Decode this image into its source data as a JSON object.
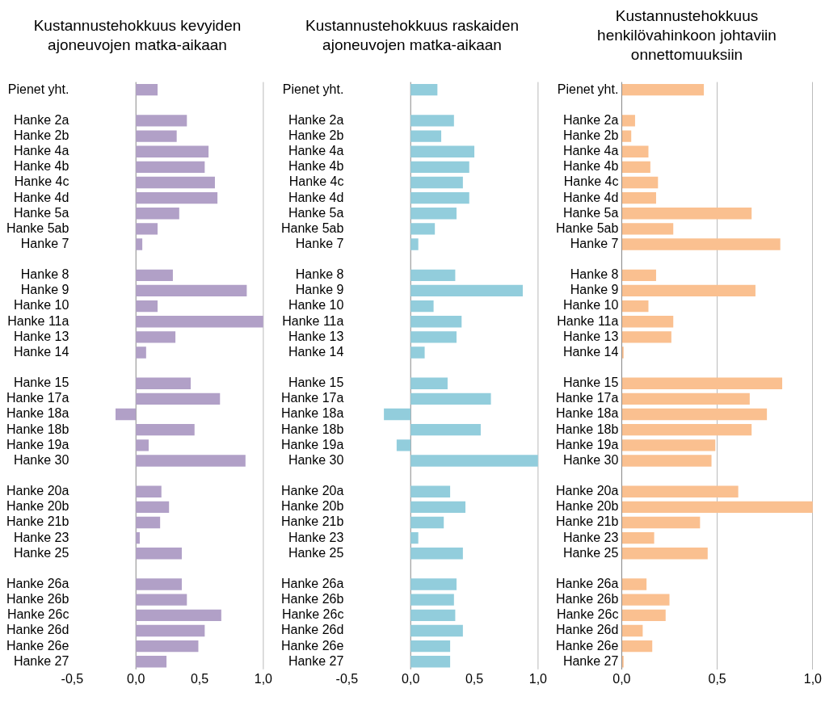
{
  "chart_data": [
    {
      "type": "bar",
      "orientation": "horizontal",
      "title": "Kustannustehokkuus kevyiden ajoneuvojen matka-aikaan",
      "categories": [
        "Pienet yht.",
        null,
        "Hanke 2a",
        "Hanke 2b",
        "Hanke 4a",
        "Hanke 4b",
        "Hanke 4c",
        "Hanke 4d",
        "Hanke 5a",
        "Hanke 5ab",
        "Hanke 7",
        null,
        "Hanke 8",
        "Hanke 9",
        "Hanke 10",
        "Hanke 11a",
        "Hanke 13",
        "Hanke 14",
        null,
        "Hanke 15",
        "Hanke 17a",
        "Hanke 18a",
        "Hanke 18b",
        "Hanke 19a",
        "Hanke 30",
        null,
        "Hanke 20a",
        "Hanke 20b",
        "Hanke 21b",
        "Hanke 23",
        "Hanke 25",
        null,
        "Hanke 26a",
        "Hanke 26b",
        "Hanke 26c",
        "Hanke 26d",
        "Hanke 26e",
        "Hanke 27"
      ],
      "values": [
        0.17,
        null,
        0.4,
        0.32,
        0.57,
        0.54,
        0.62,
        0.64,
        0.34,
        0.17,
        0.05,
        null,
        0.29,
        0.87,
        0.17,
        1.0,
        0.31,
        0.08,
        null,
        0.43,
        0.66,
        -0.16,
        0.46,
        0.1,
        0.86,
        null,
        0.2,
        0.26,
        0.19,
        0.03,
        0.36,
        null,
        0.36,
        0.4,
        0.67,
        0.54,
        0.49,
        0.24
      ],
      "color": "#b1a0c7",
      "xlim": [
        -0.5,
        1.0
      ],
      "xticks": [
        {
          "value": -0.5,
          "label": "-0,5"
        },
        {
          "value": 0,
          "label": "0,0"
        },
        {
          "value": 0.5,
          "label": "0,5"
        },
        {
          "value": 1.0,
          "label": "1,0"
        }
      ],
      "ref_lines": [
        {
          "axis": "x",
          "value": 0,
          "color": "#888888"
        },
        {
          "axis": "x",
          "value": 1.0,
          "color": "#bbbbbb"
        }
      ]
    },
    {
      "type": "bar",
      "orientation": "horizontal",
      "title": "Kustannustehokkuus raskaiden ajoneuvojen matka-aikaan",
      "categories": [
        "Pienet yht.",
        null,
        "Hanke 2a",
        "Hanke 2b",
        "Hanke 4a",
        "Hanke 4b",
        "Hanke 4c",
        "Hanke 4d",
        "Hanke 5a",
        "Hanke 5ab",
        "Hanke 7",
        null,
        "Hanke 8",
        "Hanke 9",
        "Hanke 10",
        "Hanke 11a",
        "Hanke 13",
        "Hanke 14",
        null,
        "Hanke 15",
        "Hanke 17a",
        "Hanke 18a",
        "Hanke 18b",
        "Hanke 19a",
        "Hanke 30",
        null,
        "Hanke 20a",
        "Hanke 20b",
        "Hanke 21b",
        "Hanke 23",
        "Hanke 25",
        null,
        "Hanke 26a",
        "Hanke 26b",
        "Hanke 26c",
        "Hanke 26d",
        "Hanke 26e",
        "Hanke 27"
      ],
      "values": [
        0.21,
        null,
        0.34,
        0.24,
        0.5,
        0.46,
        0.41,
        0.46,
        0.36,
        0.19,
        0.06,
        null,
        0.35,
        0.88,
        0.18,
        0.4,
        0.36,
        0.11,
        null,
        0.29,
        0.63,
        -0.21,
        0.55,
        -0.11,
        1.0,
        null,
        0.31,
        0.43,
        0.26,
        0.06,
        0.41,
        null,
        0.36,
        0.34,
        0.35,
        0.41,
        0.31,
        0.31
      ],
      "color": "#92cddc",
      "xlim": [
        -0.5,
        1.0
      ],
      "xticks": [
        {
          "value": -0.5,
          "label": "-0,5"
        },
        {
          "value": 0,
          "label": "0,0"
        },
        {
          "value": 0.5,
          "label": "0,5"
        },
        {
          "value": 1.0,
          "label": "1,0"
        }
      ],
      "ref_lines": [
        {
          "axis": "x",
          "value": 0,
          "color": "#888888"
        },
        {
          "axis": "x",
          "value": 1.0,
          "color": "#bbbbbb"
        }
      ]
    },
    {
      "type": "bar",
      "orientation": "horizontal",
      "title": "Kustannustehokkuus henkilövahinkoon johtaviin onnettomuuksiin",
      "categories": [
        "Pienet yht.",
        null,
        "Hanke 2a",
        "Hanke 2b",
        "Hanke 4a",
        "Hanke 4b",
        "Hanke 4c",
        "Hanke 4d",
        "Hanke 5a",
        "Hanke 5ab",
        "Hanke 7",
        null,
        "Hanke 8",
        "Hanke 9",
        "Hanke 10",
        "Hanke 11a",
        "Hanke 13",
        "Hanke 14",
        null,
        "Hanke 15",
        "Hanke 17a",
        "Hanke 18a",
        "Hanke 18b",
        "Hanke 19a",
        "Hanke 30",
        null,
        "Hanke 20a",
        "Hanke 20b",
        "Hanke 21b",
        "Hanke 23",
        "Hanke 25",
        null,
        "Hanke 26a",
        "Hanke 26b",
        "Hanke 26c",
        "Hanke 26d",
        "Hanke 26e",
        "Hanke 27"
      ],
      "values": [
        0.43,
        null,
        0.07,
        0.05,
        0.14,
        0.15,
        0.19,
        0.18,
        0.68,
        0.27,
        0.83,
        null,
        0.18,
        0.7,
        0.14,
        0.27,
        0.26,
        0.01,
        null,
        0.84,
        0.67,
        0.76,
        0.68,
        0.49,
        0.47,
        null,
        0.61,
        1.0,
        0.41,
        0.17,
        0.45,
        null,
        0.13,
        0.25,
        0.23,
        0.11,
        0.16,
        0.01
      ],
      "color": "#fac090",
      "xlim": [
        0,
        1.0
      ],
      "xticks": [
        {
          "value": 0,
          "label": "0,0"
        },
        {
          "value": 0.5,
          "label": "0,5"
        },
        {
          "value": 1.0,
          "label": "1,0"
        }
      ],
      "grid": "x"
    }
  ]
}
